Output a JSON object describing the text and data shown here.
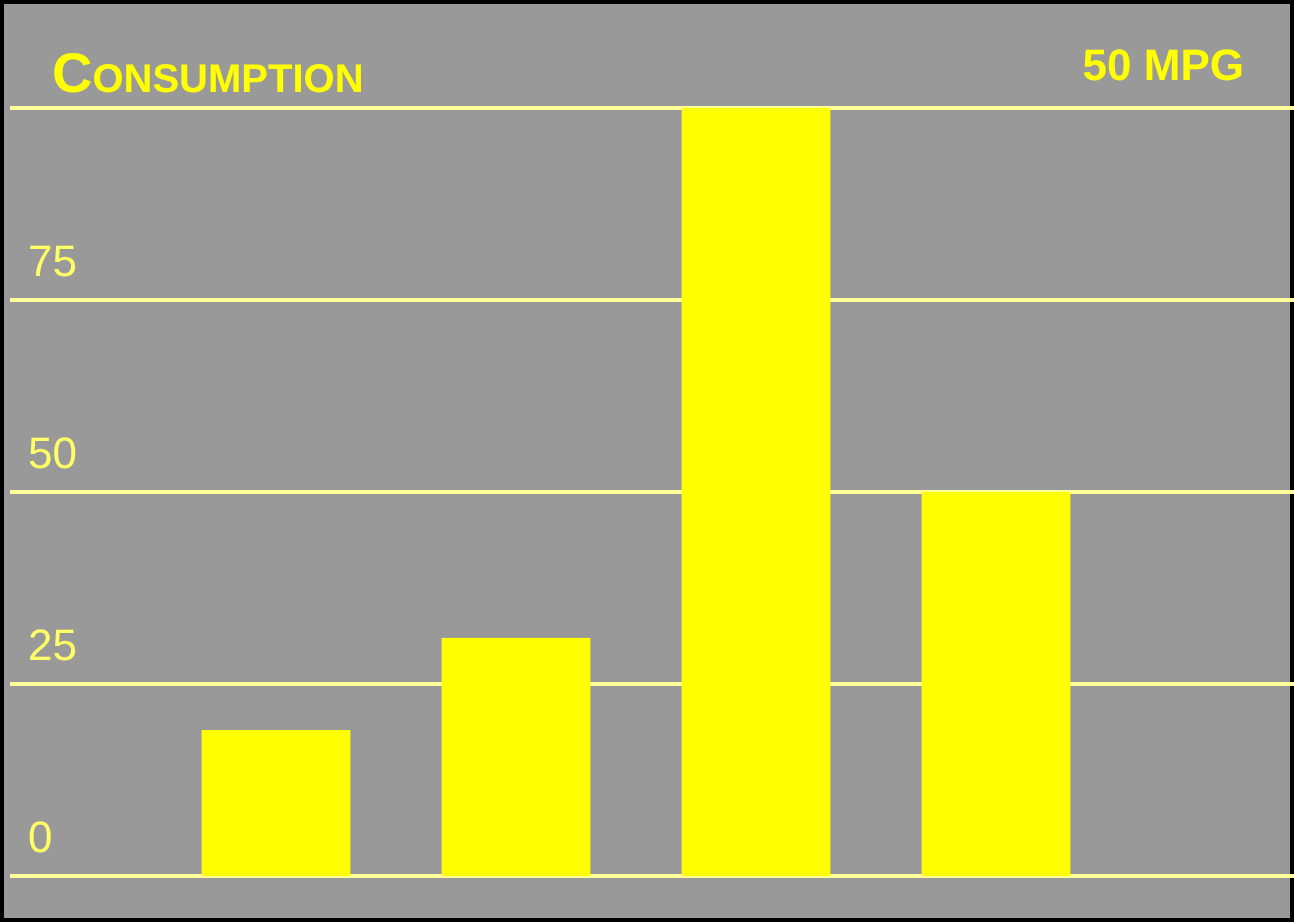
{
  "chart_data": {
    "type": "bar",
    "title": "Consumption",
    "subtitle": "50 MPG",
    "categories": [
      null,
      null,
      null,
      null
    ],
    "values": [
      19,
      31,
      100,
      50
    ],
    "color": "#ffff00",
    "ylim": [
      -6,
      100
    ],
    "yticks": [
      0,
      25,
      50,
      75,
      {
        "value": 100,
        "label": null
      }
    ],
    "grid": "y"
  }
}
